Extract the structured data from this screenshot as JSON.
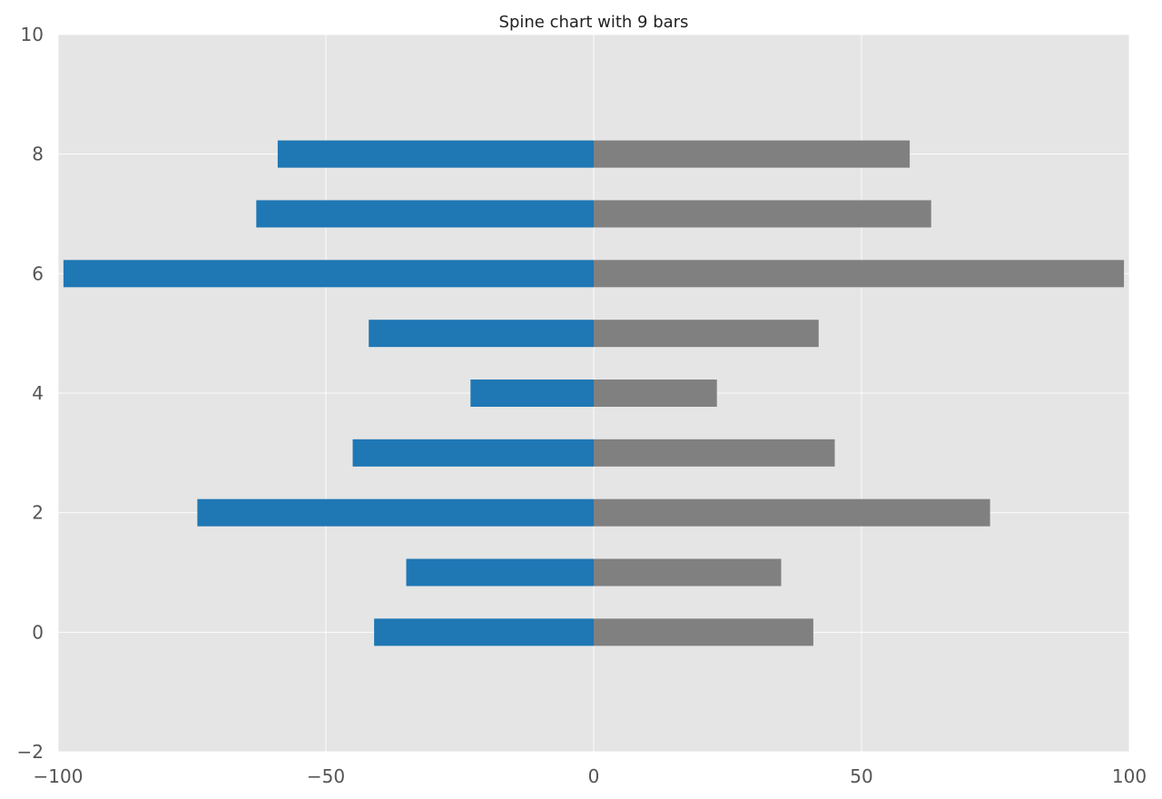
{
  "chart_data": {
    "type": "bar",
    "orientation": "horizontal",
    "title": "Spine chart with 9 bars",
    "xlabel": "",
    "ylabel": "",
    "xlim": [
      -100,
      100
    ],
    "ylim": [
      -2,
      10
    ],
    "xticks": [
      -100,
      -50,
      0,
      50,
      100
    ],
    "xtick_labels": [
      "−100",
      "−50",
      "0",
      "50",
      "100"
    ],
    "yticks": [
      -2,
      0,
      2,
      4,
      6,
      8,
      10
    ],
    "ytick_labels": [
      "−2",
      "0",
      "2",
      "4",
      "6",
      "8",
      "10"
    ],
    "categories": [
      0,
      1,
      2,
      3,
      4,
      5,
      6,
      7,
      8
    ],
    "series": [
      {
        "values": [
          -41,
          -35,
          -74,
          -45,
          -23,
          -42,
          -99,
          -63,
          -59
        ],
        "color": "#1f77b4"
      },
      {
        "values": [
          41,
          35,
          74,
          45,
          23,
          42,
          99,
          63,
          59
        ],
        "color": "#808080"
      }
    ],
    "grid": true,
    "background_color": "#e5e5e5",
    "legend": "none"
  }
}
